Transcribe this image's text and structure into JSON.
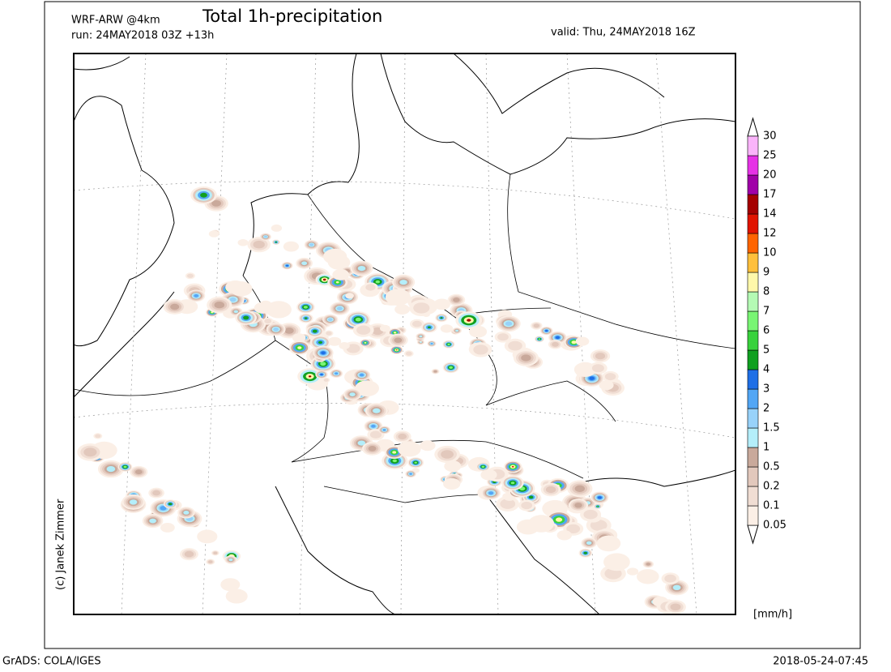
{
  "header": {
    "model": "WRF-ARW @4km",
    "run": "run: 24MAY2018 03Z +13h",
    "title": "Total 1h-precipitation",
    "valid": "valid: Thu, 24MAY2018 16Z"
  },
  "credit": "(c) Janek Zimmer",
  "legend": {
    "unit": "[mm/h]",
    "labels": [
      "0.05",
      "0.1",
      "0.2",
      "0.5",
      "1",
      "1.5",
      "2",
      "3",
      "4",
      "5",
      "6",
      "7",
      "8",
      "9",
      "10",
      "12",
      "14",
      "17",
      "20",
      "25",
      "30"
    ],
    "colors": [
      "#fbefe6",
      "#f0ddd3",
      "#e2c8bc",
      "#c9a99b",
      "#b4eefa",
      "#98d2fa",
      "#52a6f5",
      "#1f6fe6",
      "#10a020",
      "#38d23c",
      "#78f573",
      "#b4fab4",
      "#fff8aa",
      "#ffc03c",
      "#ff6400",
      "#e11400",
      "#a50000",
      "#a000a8",
      "#e632e6",
      "#fab4fa"
    ]
  },
  "footer": {
    "left": "GrADS: COLA/IGES",
    "right": "2018-05-24-07:45"
  }
}
